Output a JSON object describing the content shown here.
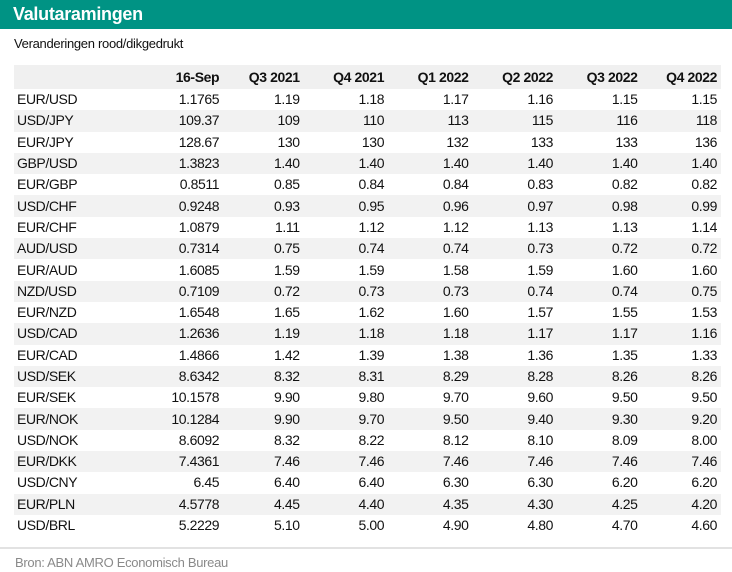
{
  "title": "Valutaramingen",
  "subtitle": "Veranderingen rood/dikgedrukt",
  "columns": [
    "",
    "16-Sep",
    "Q3 2021",
    "Q4 2021",
    "Q1 2022",
    "Q2 2022",
    "Q3 2022",
    "Q4 2022"
  ],
  "rows": [
    [
      "EUR/USD",
      "1.1765",
      "1.19",
      "1.18",
      "1.17",
      "1.16",
      "1.15",
      "1.15"
    ],
    [
      "USD/JPY",
      "109.37",
      "109",
      "110",
      "113",
      "115",
      "116",
      "118"
    ],
    [
      "EUR/JPY",
      "128.67",
      "130",
      "130",
      "132",
      "133",
      "133",
      "136"
    ],
    [
      "GBP/USD",
      "1.3823",
      "1.40",
      "1.40",
      "1.40",
      "1.40",
      "1.40",
      "1.40"
    ],
    [
      "EUR/GBP",
      "0.8511",
      "0.85",
      "0.84",
      "0.84",
      "0.83",
      "0.82",
      "0.82"
    ],
    [
      "USD/CHF",
      "0.9248",
      "0.93",
      "0.95",
      "0.96",
      "0.97",
      "0.98",
      "0.99"
    ],
    [
      "EUR/CHF",
      "1.0879",
      "1.11",
      "1.12",
      "1.12",
      "1.13",
      "1.13",
      "1.14"
    ],
    [
      "AUD/USD",
      "0.7314",
      "0.75",
      "0.74",
      "0.74",
      "0.73",
      "0.72",
      "0.72"
    ],
    [
      "EUR/AUD",
      "1.6085",
      "1.59",
      "1.59",
      "1.58",
      "1.59",
      "1.60",
      "1.60"
    ],
    [
      "NZD/USD",
      "0.7109",
      "0.72",
      "0.73",
      "0.73",
      "0.74",
      "0.74",
      "0.75"
    ],
    [
      "EUR/NZD",
      "1.6548",
      "1.65",
      "1.62",
      "1.60",
      "1.57",
      "1.55",
      "1.53"
    ],
    [
      "USD/CAD",
      "1.2636",
      "1.19",
      "1.18",
      "1.18",
      "1.17",
      "1.17",
      "1.16"
    ],
    [
      "EUR/CAD",
      "1.4866",
      "1.42",
      "1.39",
      "1.38",
      "1.36",
      "1.35",
      "1.33"
    ],
    [
      "USD/SEK",
      "8.6342",
      "8.32",
      "8.31",
      "8.29",
      "8.28",
      "8.26",
      "8.26"
    ],
    [
      "EUR/SEK",
      "10.1578",
      "9.90",
      "9.80",
      "9.70",
      "9.60",
      "9.50",
      "9.50"
    ],
    [
      "EUR/NOK",
      "10.1284",
      "9.90",
      "9.70",
      "9.50",
      "9.40",
      "9.30",
      "9.20"
    ],
    [
      "USD/NOK",
      "8.6092",
      "8.32",
      "8.22",
      "8.12",
      "8.10",
      "8.09",
      "8.00"
    ],
    [
      "EUR/DKK",
      "7.4361",
      "7.46",
      "7.46",
      "7.46",
      "7.46",
      "7.46",
      "7.46"
    ],
    [
      "USD/CNY",
      "6.45",
      "6.40",
      "6.40",
      "6.30",
      "6.30",
      "6.20",
      "6.20"
    ],
    [
      "EUR/PLN",
      "4.5778",
      "4.45",
      "4.40",
      "4.35",
      "4.30",
      "4.25",
      "4.20"
    ],
    [
      "USD/BRL",
      "5.2229",
      "5.10",
      "5.00",
      "4.90",
      "4.80",
      "4.70",
      "4.60"
    ]
  ],
  "source": "Bron: ABN AMRO Economisch Bureau",
  "colors": {
    "header_bar": "#009384",
    "row_alt": "#f2f2f2"
  }
}
